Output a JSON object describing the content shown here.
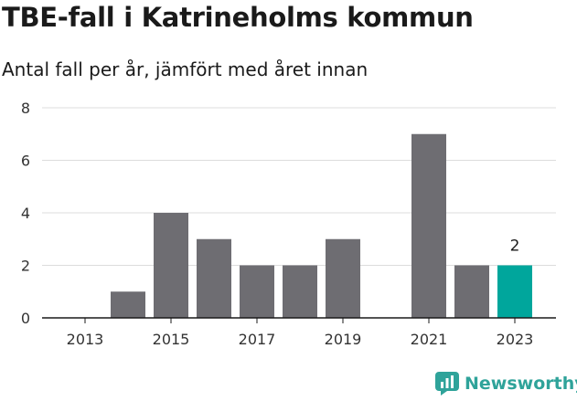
{
  "header": {
    "title": "TBE-fall i Katrineholms kommun",
    "subtitle": "Antal fall per år, jämfört med året innan"
  },
  "brand": {
    "name": "Newsworthy",
    "icon": "newsworthy-logo-icon",
    "color": "#2fa39a"
  },
  "colors": {
    "bar": "#6e6d72",
    "highlight": "#00a69c",
    "grid": "#dcdcdc",
    "axis": "#1a1a1a"
  },
  "chart_data": {
    "type": "bar",
    "categories": [
      "2013",
      "2014",
      "2015",
      "2016",
      "2017",
      "2018",
      "2019",
      "2020",
      "2021",
      "2022",
      "2023"
    ],
    "values": [
      0,
      1,
      4,
      3,
      2,
      2,
      3,
      0,
      7,
      2,
      2
    ],
    "x_tick_labels": [
      "2013",
      "2015",
      "2017",
      "2019",
      "2021",
      "2023"
    ],
    "y_ticks": [
      "0",
      "2",
      "4",
      "6",
      "8"
    ],
    "ylim": [
      0,
      8
    ],
    "highlight_index": 10,
    "highlight_label": "2",
    "grid": true,
    "xlabel": "",
    "ylabel": ""
  }
}
